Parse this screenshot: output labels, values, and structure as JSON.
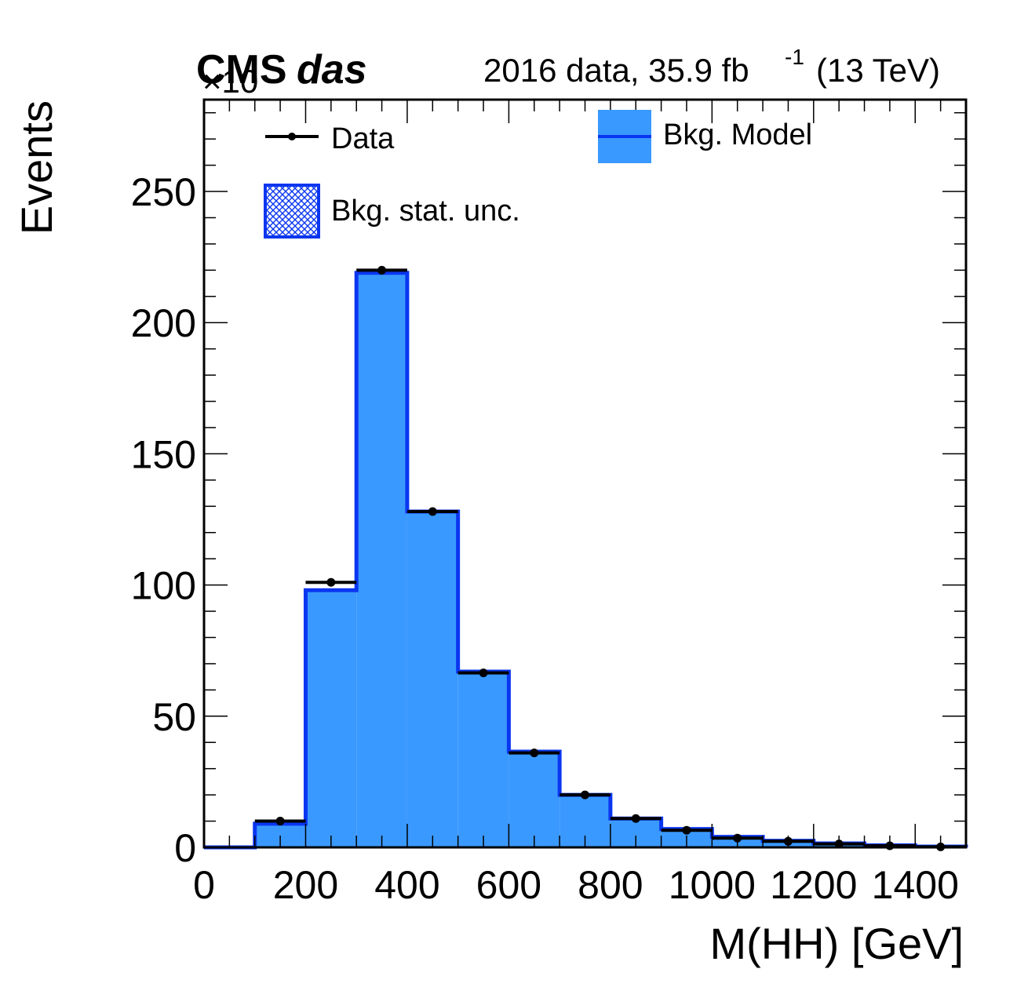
{
  "header": {
    "cms": "CMS",
    "das": "das",
    "lumi_text": "2016 data, 35.9 fb",
    "lumi_exp": "-1",
    "energy": "(13 TeV)",
    "exponent_overlay": "×10"
  },
  "chart_data": {
    "type": "bar",
    "xlabel": "M(HH) [GeV]",
    "ylabel": "Events",
    "xlim": [
      0,
      1500
    ],
    "ylim": [
      0,
      285
    ],
    "bin_edges": [
      0,
      100,
      200,
      300,
      400,
      500,
      600,
      700,
      800,
      900,
      1000,
      1100,
      1200,
      1300,
      1400,
      1500
    ],
    "x_tick_labels": [
      "0",
      "200",
      "400",
      "600",
      "800",
      "1000",
      "1200",
      "1400"
    ],
    "y_tick_labels": [
      "0",
      "50",
      "100",
      "150",
      "200",
      "250"
    ],
    "series": [
      {
        "name": "Bkg. Model",
        "kind": "filled-histogram",
        "fill_color": "#3a99ff",
        "line_color": "#0a36f0",
        "values": [
          0,
          9,
          98,
          219,
          128,
          67,
          36.5,
          20,
          11,
          7,
          4,
          2.5,
          1.5,
          0.8,
          0.3
        ]
      },
      {
        "name": "Data",
        "kind": "points",
        "color": "#000000",
        "values": [
          0,
          10,
          101,
          220,
          128,
          66.5,
          36,
          20,
          11,
          6.5,
          3.5,
          2.3,
          1.3,
          0.6,
          0.2
        ]
      }
    ],
    "legend": [
      {
        "label": "Data",
        "marker": "point-line"
      },
      {
        "label": "Bkg. Model",
        "marker": "filled-box-line"
      },
      {
        "label": "Bkg. stat. unc.",
        "marker": "hatched-box"
      }
    ],
    "legend_placement": "top"
  }
}
